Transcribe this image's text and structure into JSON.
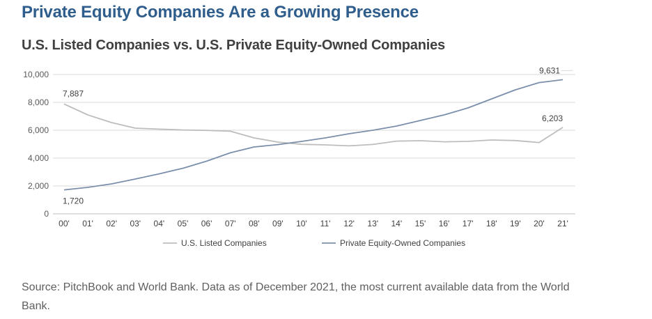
{
  "title": "Private Equity Companies Are a Growing Presence",
  "subtitle": "U.S. Listed Companies vs. U.S. Private Equity-Owned Companies",
  "source": "Source: PitchBook and World Bank. Data as of December 2021, the most current available data from the World Bank.",
  "chart_data": {
    "type": "line",
    "categories": [
      "00'",
      "01'",
      "02'",
      "03'",
      "04'",
      "05'",
      "06'",
      "07'",
      "08'",
      "09'",
      "10'",
      "11'",
      "12'",
      "13'",
      "14'",
      "15'",
      "16'",
      "17'",
      "18'",
      "19'",
      "20'",
      "21'"
    ],
    "ylim": [
      0,
      10000
    ],
    "yticks": [
      0,
      2000,
      4000,
      6000,
      8000,
      10000
    ],
    "ytick_labels": [
      "0",
      "2,000",
      "4,000",
      "6,000",
      "8,000",
      "10,000"
    ],
    "grid": true,
    "legend_position": "bottom",
    "series": [
      {
        "name": "U.S. Listed Companies",
        "color": "#bdbdbd",
        "values": [
          7887,
          7100,
          6550,
          6150,
          6080,
          6020,
          5990,
          5930,
          5450,
          5150,
          4990,
          4950,
          4880,
          4980,
          5220,
          5250,
          5170,
          5200,
          5300,
          5260,
          5120,
          6203
        ],
        "labels": [
          {
            "index": 0,
            "text": "7,887"
          },
          {
            "index": 21,
            "text": "6,203"
          }
        ]
      },
      {
        "name": "Private Equity-Owned Companies",
        "color": "#7b8fab",
        "values": [
          1720,
          1900,
          2150,
          2500,
          2870,
          3270,
          3780,
          4380,
          4800,
          4970,
          5200,
          5450,
          5750,
          6000,
          6300,
          6700,
          7100,
          7600,
          8250,
          8900,
          9420,
          9631
        ],
        "labels": [
          {
            "index": 0,
            "text": "1,720"
          },
          {
            "index": 21,
            "text": "9,631"
          }
        ]
      }
    ]
  }
}
